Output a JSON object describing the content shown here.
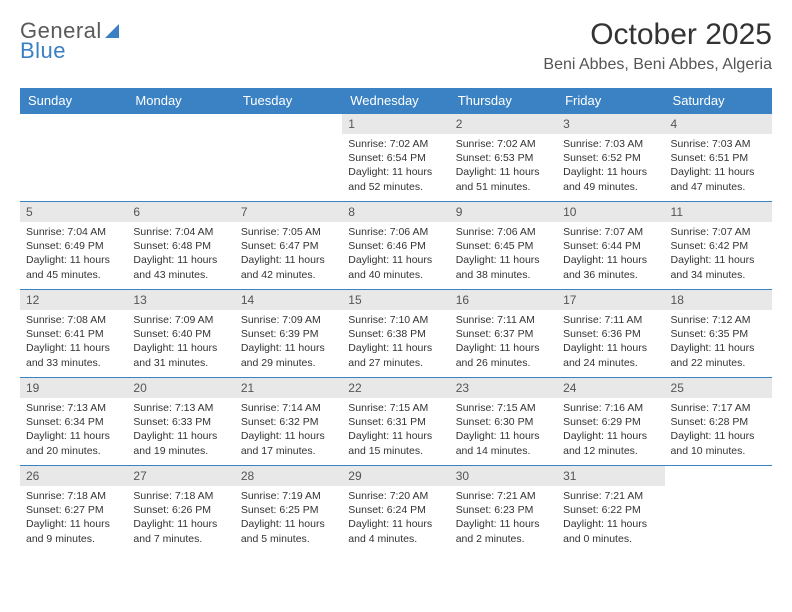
{
  "logo": {
    "text1": "General",
    "text2": "Blue",
    "icon_color": "#3b7fc4",
    "text1_color": "#5a5a5a",
    "text2_color": "#3b7fc4"
  },
  "title": "October 2025",
  "location": "Beni Abbes, Beni Abbes, Algeria",
  "header_bg": "#3b82c4",
  "header_text_color": "#ffffff",
  "daynum_bg": "#e8e8e8",
  "border_color": "#3b82c4",
  "days_of_week": [
    "Sunday",
    "Monday",
    "Tuesday",
    "Wednesday",
    "Thursday",
    "Friday",
    "Saturday"
  ],
  "weeks": [
    [
      null,
      null,
      null,
      {
        "n": "1",
        "sr": "Sunrise: 7:02 AM",
        "ss": "Sunset: 6:54 PM",
        "dl": "Daylight: 11 hours and 52 minutes."
      },
      {
        "n": "2",
        "sr": "Sunrise: 7:02 AM",
        "ss": "Sunset: 6:53 PM",
        "dl": "Daylight: 11 hours and 51 minutes."
      },
      {
        "n": "3",
        "sr": "Sunrise: 7:03 AM",
        "ss": "Sunset: 6:52 PM",
        "dl": "Daylight: 11 hours and 49 minutes."
      },
      {
        "n": "4",
        "sr": "Sunrise: 7:03 AM",
        "ss": "Sunset: 6:51 PM",
        "dl": "Daylight: 11 hours and 47 minutes."
      }
    ],
    [
      {
        "n": "5",
        "sr": "Sunrise: 7:04 AM",
        "ss": "Sunset: 6:49 PM",
        "dl": "Daylight: 11 hours and 45 minutes."
      },
      {
        "n": "6",
        "sr": "Sunrise: 7:04 AM",
        "ss": "Sunset: 6:48 PM",
        "dl": "Daylight: 11 hours and 43 minutes."
      },
      {
        "n": "7",
        "sr": "Sunrise: 7:05 AM",
        "ss": "Sunset: 6:47 PM",
        "dl": "Daylight: 11 hours and 42 minutes."
      },
      {
        "n": "8",
        "sr": "Sunrise: 7:06 AM",
        "ss": "Sunset: 6:46 PM",
        "dl": "Daylight: 11 hours and 40 minutes."
      },
      {
        "n": "9",
        "sr": "Sunrise: 7:06 AM",
        "ss": "Sunset: 6:45 PM",
        "dl": "Daylight: 11 hours and 38 minutes."
      },
      {
        "n": "10",
        "sr": "Sunrise: 7:07 AM",
        "ss": "Sunset: 6:44 PM",
        "dl": "Daylight: 11 hours and 36 minutes."
      },
      {
        "n": "11",
        "sr": "Sunrise: 7:07 AM",
        "ss": "Sunset: 6:42 PM",
        "dl": "Daylight: 11 hours and 34 minutes."
      }
    ],
    [
      {
        "n": "12",
        "sr": "Sunrise: 7:08 AM",
        "ss": "Sunset: 6:41 PM",
        "dl": "Daylight: 11 hours and 33 minutes."
      },
      {
        "n": "13",
        "sr": "Sunrise: 7:09 AM",
        "ss": "Sunset: 6:40 PM",
        "dl": "Daylight: 11 hours and 31 minutes."
      },
      {
        "n": "14",
        "sr": "Sunrise: 7:09 AM",
        "ss": "Sunset: 6:39 PM",
        "dl": "Daylight: 11 hours and 29 minutes."
      },
      {
        "n": "15",
        "sr": "Sunrise: 7:10 AM",
        "ss": "Sunset: 6:38 PM",
        "dl": "Daylight: 11 hours and 27 minutes."
      },
      {
        "n": "16",
        "sr": "Sunrise: 7:11 AM",
        "ss": "Sunset: 6:37 PM",
        "dl": "Daylight: 11 hours and 26 minutes."
      },
      {
        "n": "17",
        "sr": "Sunrise: 7:11 AM",
        "ss": "Sunset: 6:36 PM",
        "dl": "Daylight: 11 hours and 24 minutes."
      },
      {
        "n": "18",
        "sr": "Sunrise: 7:12 AM",
        "ss": "Sunset: 6:35 PM",
        "dl": "Daylight: 11 hours and 22 minutes."
      }
    ],
    [
      {
        "n": "19",
        "sr": "Sunrise: 7:13 AM",
        "ss": "Sunset: 6:34 PM",
        "dl": "Daylight: 11 hours and 20 minutes."
      },
      {
        "n": "20",
        "sr": "Sunrise: 7:13 AM",
        "ss": "Sunset: 6:33 PM",
        "dl": "Daylight: 11 hours and 19 minutes."
      },
      {
        "n": "21",
        "sr": "Sunrise: 7:14 AM",
        "ss": "Sunset: 6:32 PM",
        "dl": "Daylight: 11 hours and 17 minutes."
      },
      {
        "n": "22",
        "sr": "Sunrise: 7:15 AM",
        "ss": "Sunset: 6:31 PM",
        "dl": "Daylight: 11 hours and 15 minutes."
      },
      {
        "n": "23",
        "sr": "Sunrise: 7:15 AM",
        "ss": "Sunset: 6:30 PM",
        "dl": "Daylight: 11 hours and 14 minutes."
      },
      {
        "n": "24",
        "sr": "Sunrise: 7:16 AM",
        "ss": "Sunset: 6:29 PM",
        "dl": "Daylight: 11 hours and 12 minutes."
      },
      {
        "n": "25",
        "sr": "Sunrise: 7:17 AM",
        "ss": "Sunset: 6:28 PM",
        "dl": "Daylight: 11 hours and 10 minutes."
      }
    ],
    [
      {
        "n": "26",
        "sr": "Sunrise: 7:18 AM",
        "ss": "Sunset: 6:27 PM",
        "dl": "Daylight: 11 hours and 9 minutes."
      },
      {
        "n": "27",
        "sr": "Sunrise: 7:18 AM",
        "ss": "Sunset: 6:26 PM",
        "dl": "Daylight: 11 hours and 7 minutes."
      },
      {
        "n": "28",
        "sr": "Sunrise: 7:19 AM",
        "ss": "Sunset: 6:25 PM",
        "dl": "Daylight: 11 hours and 5 minutes."
      },
      {
        "n": "29",
        "sr": "Sunrise: 7:20 AM",
        "ss": "Sunset: 6:24 PM",
        "dl": "Daylight: 11 hours and 4 minutes."
      },
      {
        "n": "30",
        "sr": "Sunrise: 7:21 AM",
        "ss": "Sunset: 6:23 PM",
        "dl": "Daylight: 11 hours and 2 minutes."
      },
      {
        "n": "31",
        "sr": "Sunrise: 7:21 AM",
        "ss": "Sunset: 6:22 PM",
        "dl": "Daylight: 11 hours and 0 minutes."
      },
      null
    ]
  ]
}
